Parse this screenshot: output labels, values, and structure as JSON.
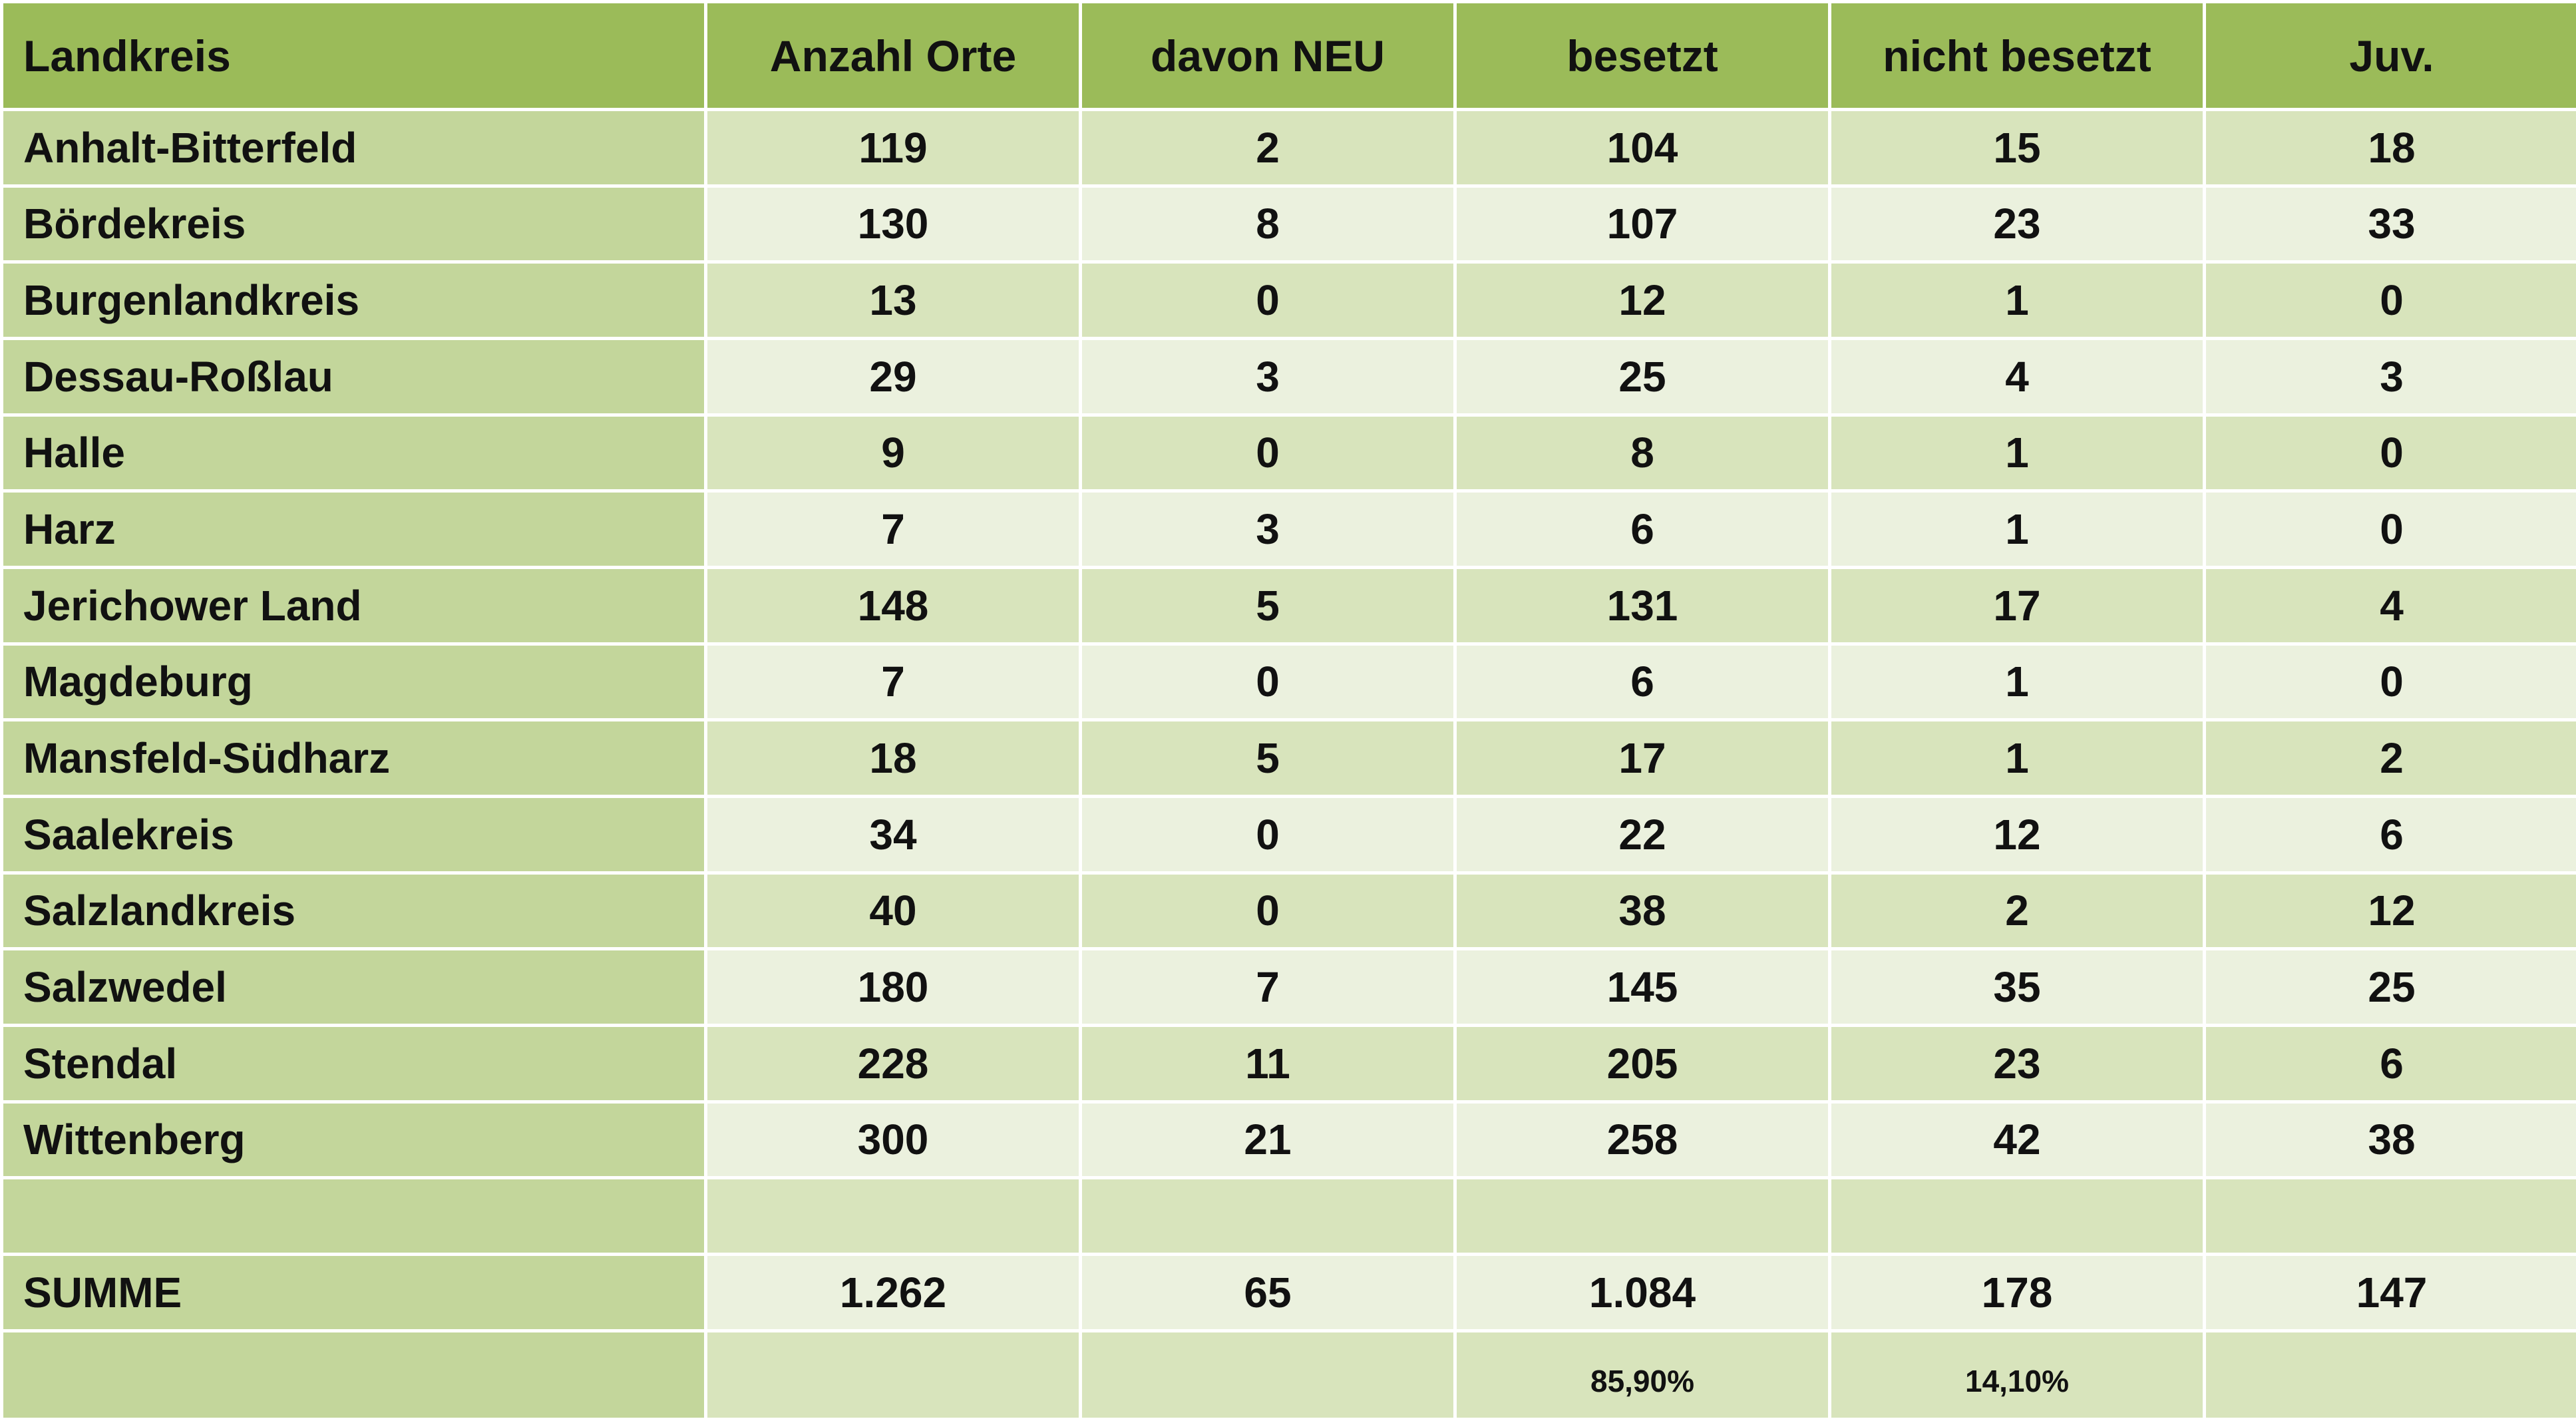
{
  "table": {
    "headers": [
      "Landkreis",
      "Anzahl Orte",
      "davon NEU",
      "besetzt",
      "nicht besetzt",
      "Juv."
    ],
    "rows": [
      [
        "Anhalt-Bitterfeld",
        "119",
        "2",
        "104",
        "15",
        "18"
      ],
      [
        "Bördekreis",
        "130",
        "8",
        "107",
        "23",
        "33"
      ],
      [
        "Burgenlandkreis",
        "13",
        "0",
        "12",
        "1",
        "0"
      ],
      [
        "Dessau-Roßlau",
        "29",
        "3",
        "25",
        "4",
        "3"
      ],
      [
        "Halle",
        "9",
        "0",
        "8",
        "1",
        "0"
      ],
      [
        "Harz",
        "7",
        "3",
        "6",
        "1",
        "0"
      ],
      [
        "Jerichower Land",
        "148",
        "5",
        "131",
        "17",
        "4"
      ],
      [
        "Magdeburg",
        "7",
        "0",
        "6",
        "1",
        "0"
      ],
      [
        "Mansfeld-Südharz",
        "18",
        "5",
        "17",
        "1",
        "2"
      ],
      [
        "Saalekreis",
        "34",
        "0",
        "22",
        "12",
        "6"
      ],
      [
        "Salzlandkreis",
        "40",
        "0",
        "38",
        "2",
        "12"
      ],
      [
        "Salzwedel",
        "180",
        "7",
        "145",
        "35",
        "25"
      ],
      [
        "Stendal",
        "228",
        "11",
        "205",
        "23",
        "6"
      ],
      [
        "Wittenberg",
        "300",
        "21",
        "258",
        "42",
        "38"
      ],
      [
        "",
        "",
        "",
        "",
        "",
        ""
      ],
      [
        "SUMME",
        "1.262",
        "65",
        "1.084",
        "178",
        "147"
      ],
      [
        "",
        "",
        "",
        "85,90%",
        "14,10%",
        ""
      ]
    ]
  },
  "colors": {
    "header": "#9bbb59",
    "first_column": "#c3d69b",
    "row_dark": "#d8e4bc",
    "row_light": "#ebf1de"
  }
}
